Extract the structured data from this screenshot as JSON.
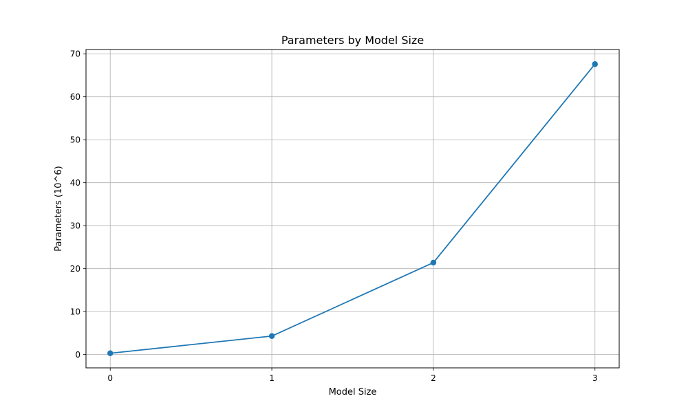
{
  "chart_data": {
    "type": "line",
    "title": "Parameters by Model Size",
    "xlabel": "Model Size",
    "ylabel": "Parameters (10^6)",
    "x": [
      0,
      1,
      2,
      3
    ],
    "series": [
      {
        "values": [
          0.3,
          4.3,
          21.4,
          67.6
        ],
        "color": "#1f77b4",
        "marker": "circle"
      }
    ],
    "xticks": [
      0,
      1,
      2,
      3
    ],
    "yticks": [
      0,
      10,
      20,
      30,
      40,
      50,
      60,
      70
    ],
    "xlim": [
      -0.15,
      3.15
    ],
    "ylim": [
      -3.1,
      71.0
    ],
    "grid": true
  }
}
